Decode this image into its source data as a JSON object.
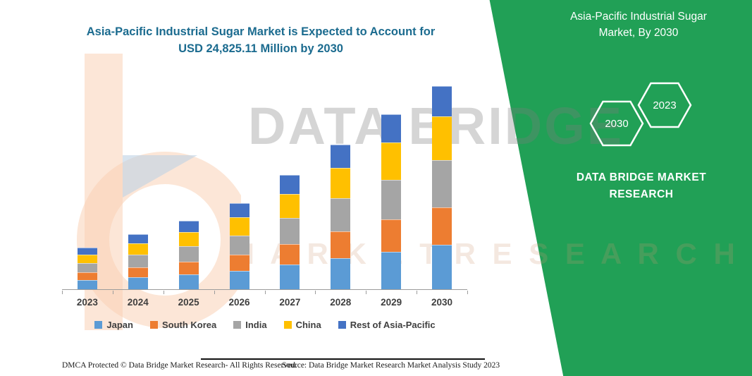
{
  "header": {
    "title_line1": "Asia-Pacific Industrial Sugar Market is Expected to Account for",
    "title_line2": "USD 24,825.11 Million by 2030"
  },
  "side_panel": {
    "title_line1": "Asia-Pacific Industrial Sugar",
    "title_line2": "Market, By 2030",
    "hexagon_back_label": "2030",
    "hexagon_front_label": "2023",
    "brand_line1": "DATA BRIDGE MARKET",
    "brand_line2": "RESEARCH"
  },
  "watermark": {
    "line1": "DATA BRIDGE",
    "line2": "M A R K E T   R E S E A R C H"
  },
  "footer": {
    "dmca": "DMCA Protected © Data Bridge Market Research-  All Rights Reserved.",
    "source": "Source: Data Bridge Market Research  Market Analysis Study 2023"
  },
  "colors": {
    "accent_green": "#21A056",
    "title_teal": "#1B6B8F"
  },
  "chart_data": {
    "type": "bar",
    "stacked": true,
    "title": "Asia-Pacific Industrial Sugar Market is Expected to Account for USD 24,825.11 Million by 2030",
    "unit": "USD Million",
    "categories": [
      "2023",
      "2024",
      "2025",
      "2026",
      "2027",
      "2028",
      "2029",
      "2030"
    ],
    "series": [
      {
        "name": "Japan",
        "color": "#5B9BD5",
        "values": [
          1100,
          1450,
          1800,
          2250,
          3000,
          3800,
          4600,
          5400
        ]
      },
      {
        "name": "South Korea",
        "color": "#ED7D31",
        "values": [
          950,
          1250,
          1550,
          1950,
          2550,
          3250,
          3900,
          4600
        ]
      },
      {
        "name": "India",
        "color": "#A5A5A5",
        "values": [
          1150,
          1550,
          1900,
          2400,
          3200,
          4050,
          4900,
          5800
        ]
      },
      {
        "name": "China",
        "color": "#FFC000",
        "values": [
          1050,
          1400,
          1750,
          2200,
          2900,
          3700,
          4500,
          5300
        ]
      },
      {
        "name": "Rest of Asia-Pacific",
        "color": "#4472C4",
        "values": [
          800,
          1050,
          1350,
          1700,
          2300,
          2900,
          3500,
          3725.11
        ]
      }
    ],
    "totals": [
      5050,
      6700,
      8350,
      10500,
      13950,
      17700,
      21400,
      24825.11
    ],
    "ylim": [
      0,
      25000
    ],
    "legend_position": "bottom",
    "xlabel": "",
    "ylabel": ""
  }
}
